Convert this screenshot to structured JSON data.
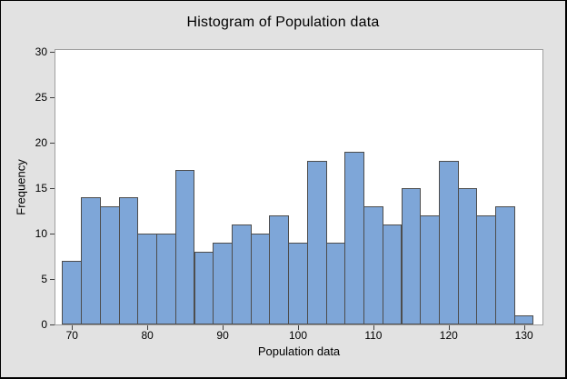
{
  "window": {
    "background": "#e2e2e2"
  },
  "chart_data": {
    "type": "bar",
    "subtype": "histogram",
    "title": "Histogram of Population data",
    "xlabel": "Population data",
    "ylabel": "Frequency",
    "bin_width": 2.5,
    "bin_centers": [
      70,
      72.5,
      75,
      77.5,
      80,
      82.5,
      85,
      87.5,
      90,
      92.5,
      95,
      97.5,
      100,
      102.5,
      105,
      107.5,
      110,
      112.5,
      115,
      117.5,
      120,
      122.5,
      125,
      127.5,
      130
    ],
    "values": [
      7,
      14,
      13,
      14,
      10,
      10,
      17,
      8,
      9,
      11,
      10,
      12,
      9,
      18,
      9,
      19,
      13,
      11,
      15,
      12,
      18,
      15,
      12,
      13,
      1
    ],
    "x_ticks": [
      70,
      80,
      90,
      100,
      110,
      120,
      130
    ],
    "y_ticks": [
      0,
      5,
      10,
      15,
      20,
      25,
      30
    ],
    "xlim": [
      67.7,
      132.7
    ],
    "ylim": [
      0,
      30.4
    ],
    "grid": false,
    "legend": false,
    "colors": {
      "bar_fill": "#7ea6d8",
      "bar_border": "#4d4d4d",
      "plot_background": "#ffffff",
      "plot_frame": "#a0a0a0",
      "window_background": "#e2e2e2",
      "tick": "#404040",
      "text": "#000000"
    }
  }
}
